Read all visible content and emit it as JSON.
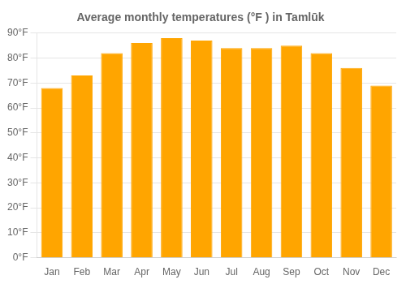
{
  "chart_data": {
    "type": "bar",
    "title": "Average monthly temperatures (°F ) in Tamlūk",
    "categories": [
      "Jan",
      "Feb",
      "Mar",
      "Apr",
      "May",
      "Jun",
      "Jul",
      "Aug",
      "Sep",
      "Oct",
      "Nov",
      "Dec"
    ],
    "values": [
      68,
      73,
      82,
      86,
      88,
      87,
      84,
      84,
      85,
      82,
      76,
      69
    ],
    "color": "#FFA500",
    "ylim": [
      0,
      90
    ],
    "yticks": [
      {
        "value": 0,
        "label": "0°F"
      },
      {
        "value": 10,
        "label": "10°F"
      },
      {
        "value": 20,
        "label": "20°F"
      },
      {
        "value": 30,
        "label": "30°F"
      },
      {
        "value": 40,
        "label": "40°F"
      },
      {
        "value": 50,
        "label": "50°F"
      },
      {
        "value": 60,
        "label": "60°F"
      },
      {
        "value": 70,
        "label": "70°F"
      },
      {
        "value": 80,
        "label": "80°F"
      },
      {
        "value": 90,
        "label": "90°F"
      }
    ],
    "grid": true
  }
}
